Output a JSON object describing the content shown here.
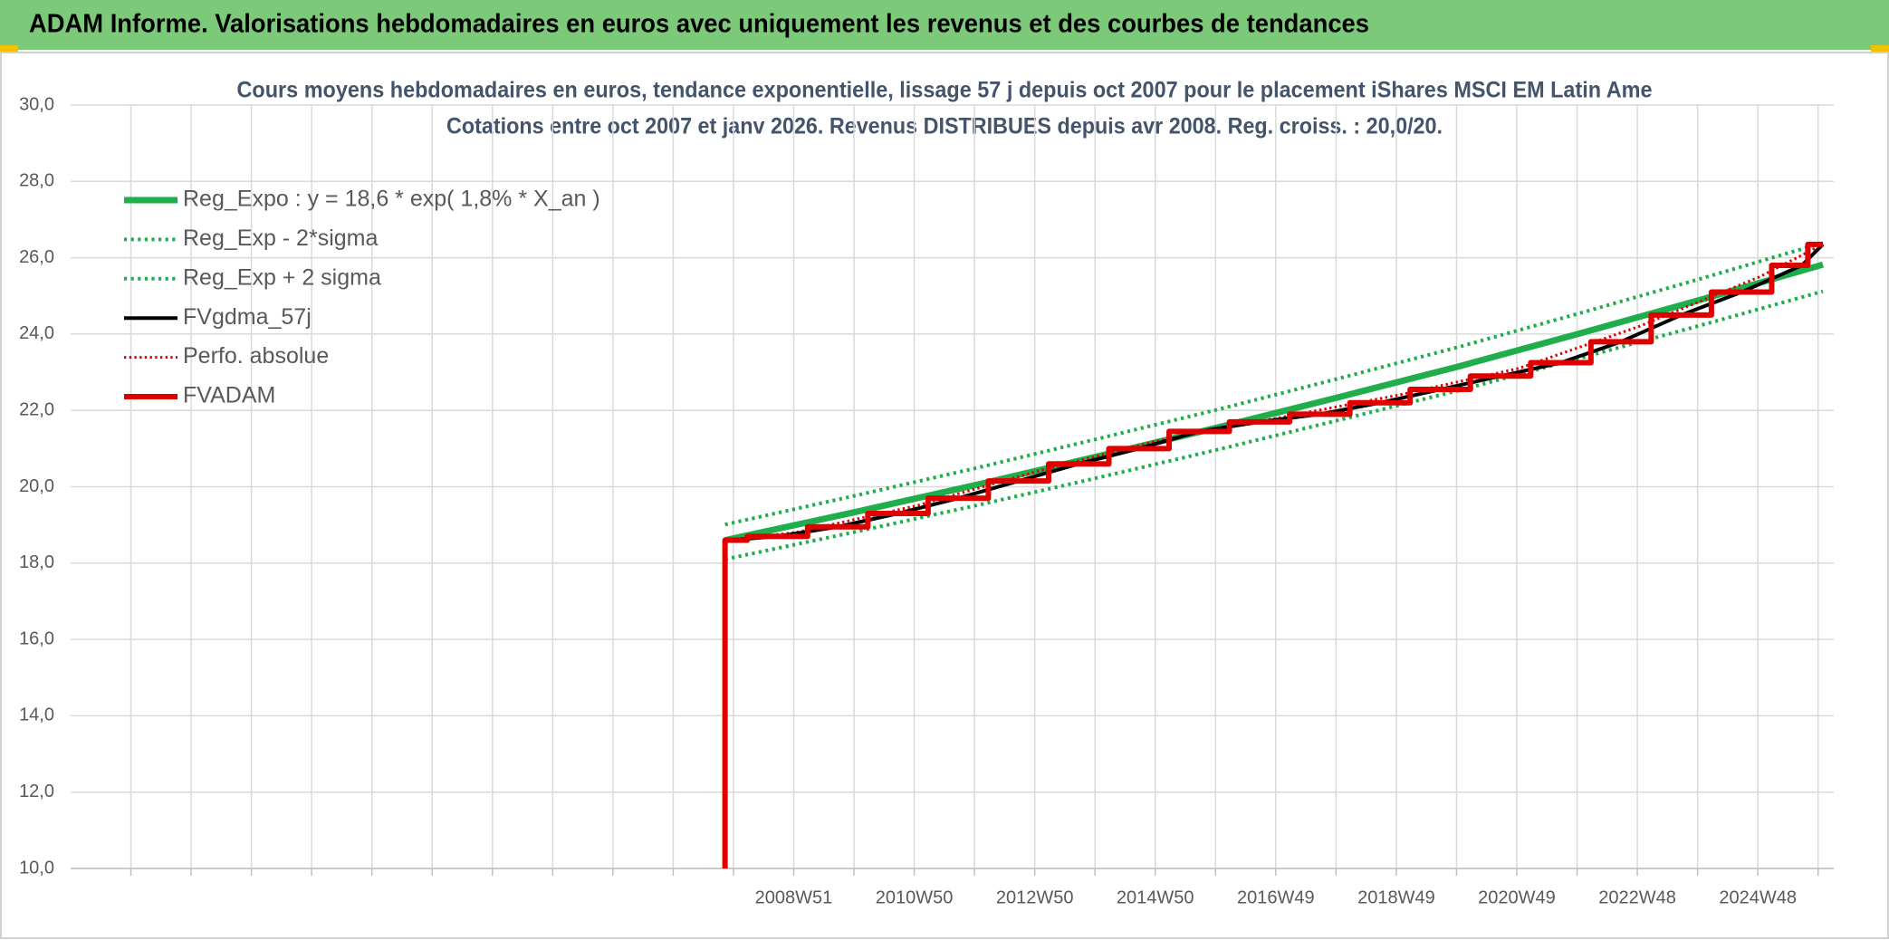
{
  "header": {
    "title": "ADAM Informe. Valorisations hebdomadaires en euros avec uniquement les revenus et des courbes de tendances"
  },
  "chart_data": {
    "type": "line",
    "title": "Cours moyens hebdomadaires en euros, tendance exponentielle, lissage 57 j depuis oct 2007 pour le placement iShares MSCI EM Latin Ame",
    "subtitle": "Cotations entre oct 2007 et janv 2026. Revenus DISTRIBUES depuis avr 2008. Reg. croiss. : 20,0/20.",
    "xlim": [
      1996.97,
      2026.23
    ],
    "xticks": [
      {
        "value": 1997.97,
        "label": null
      },
      {
        "value": 1998.97,
        "label": null
      },
      {
        "value": 1999.97,
        "label": null
      },
      {
        "value": 2000.97,
        "label": null
      },
      {
        "value": 2001.97,
        "label": null
      },
      {
        "value": 2002.97,
        "label": null
      },
      {
        "value": 2003.97,
        "label": null
      },
      {
        "value": 2004.97,
        "label": null
      },
      {
        "value": 2005.97,
        "label": null
      },
      {
        "value": 2006.97,
        "label": null
      },
      {
        "value": 2007.97,
        "label": null
      },
      {
        "value": 2008.97,
        "label": "2008W51"
      },
      {
        "value": 2009.97,
        "label": null
      },
      {
        "value": 2010.97,
        "label": "2010W50"
      },
      {
        "value": 2011.97,
        "label": null
      },
      {
        "value": 2012.97,
        "label": "2012W50"
      },
      {
        "value": 2013.97,
        "label": null
      },
      {
        "value": 2014.97,
        "label": "2014W50"
      },
      {
        "value": 2015.97,
        "label": null
      },
      {
        "value": 2016.97,
        "label": "2016W49"
      },
      {
        "value": 2017.97,
        "label": null
      },
      {
        "value": 2018.97,
        "label": "2018W49"
      },
      {
        "value": 2019.97,
        "label": null
      },
      {
        "value": 2020.97,
        "label": "2020W49"
      },
      {
        "value": 2021.97,
        "label": null
      },
      {
        "value": 2022.97,
        "label": "2022W48"
      },
      {
        "value": 2023.97,
        "label": null
      },
      {
        "value": 2024.97,
        "label": "2024W48"
      },
      {
        "value": 2025.97,
        "label": null
      }
    ],
    "ylim": [
      10,
      30
    ],
    "yticks": [
      {
        "value": 10,
        "label": "10,0"
      },
      {
        "value": 12,
        "label": "12,0"
      },
      {
        "value": 14,
        "label": "14,0"
      },
      {
        "value": 16,
        "label": "16,0"
      },
      {
        "value": 18,
        "label": "18,0"
      },
      {
        "value": 20,
        "label": "20,0"
      },
      {
        "value": 22,
        "label": "22,0"
      },
      {
        "value": 24,
        "label": "24,0"
      },
      {
        "value": 26,
        "label": "26,0"
      },
      {
        "value": 28,
        "label": "28,0"
      },
      {
        "value": 30,
        "label": "30,0"
      }
    ],
    "grid": true,
    "legend": "upper left",
    "series": [
      {
        "name": "Reg_Expo : y = 18,6 * exp( 1,8% *  X_an )",
        "color": "#1fae4b",
        "style": "solid",
        "width": 7,
        "x": [
          2007.83,
          2010,
          2012,
          2014,
          2016,
          2018,
          2020,
          2022,
          2024,
          2026.05
        ],
        "values": [
          18.6,
          19.34,
          20.05,
          20.79,
          21.55,
          22.34,
          23.15,
          24.01,
          24.89,
          25.82
        ]
      },
      {
        "name": "Reg_Exp - 2*sigma",
        "color": "#1fae4b",
        "style": "dotted",
        "width": 4,
        "x": [
          2007.83,
          2010,
          2012,
          2014,
          2016,
          2018,
          2020,
          2022,
          2024,
          2026.05
        ],
        "values": [
          18.1,
          18.82,
          19.51,
          20.23,
          20.97,
          21.74,
          22.52,
          23.36,
          24.22,
          25.12
        ]
      },
      {
        "name": "Reg_Exp + 2 sigma",
        "color": "#1fae4b",
        "style": "dotted",
        "width": 4,
        "x": [
          2007.83,
          2010,
          2012,
          2014,
          2016,
          2018,
          2020,
          2022,
          2024,
          2026.05
        ],
        "values": [
          19.01,
          19.77,
          20.49,
          21.25,
          22.02,
          22.83,
          23.66,
          24.54,
          25.44,
          26.39
        ]
      },
      {
        "name": "FVgdma_57j",
        "color": "#000000",
        "style": "solid",
        "width": 4,
        "x": [
          2007.9,
          2008.7,
          2009.7,
          2010.7,
          2011.7,
          2012.7,
          2013.7,
          2014.7,
          2015.7,
          2016.7,
          2017.7,
          2018.7,
          2019.7,
          2020.7,
          2021.7,
          2022.7,
          2023.7,
          2024.7,
          2025.7,
          2026.05
        ],
        "values": [
          18.6,
          18.7,
          18.95,
          19.3,
          19.7,
          20.15,
          20.6,
          21.0,
          21.45,
          21.7,
          21.9,
          22.2,
          22.55,
          22.9,
          23.25,
          23.8,
          24.5,
          25.1,
          25.8,
          26.35
        ]
      },
      {
        "name": "Perfo. absolue",
        "color": "#e00000",
        "style": "dotted",
        "width": 3,
        "x": [
          2007.83,
          2009,
          2011,
          2013,
          2015,
          2017,
          2019,
          2021,
          2023,
          2025,
          2026.05
        ],
        "values": [
          18.6,
          18.8,
          19.5,
          20.4,
          21.2,
          21.8,
          22.4,
          23.1,
          24.2,
          25.5,
          26.35
        ]
      },
      {
        "name": "FVADAM",
        "color": "#e00000",
        "style": "solid",
        "width": 6,
        "x": [
          2007.83,
          2007.83,
          2008.2,
          2008.2,
          2009.2,
          2009.2,
          2010.2,
          2010.2,
          2011.2,
          2011.2,
          2012.2,
          2012.2,
          2013.2,
          2013.2,
          2014.2,
          2014.2,
          2015.2,
          2015.2,
          2016.2,
          2016.2,
          2017.2,
          2017.2,
          2018.2,
          2018.2,
          2019.2,
          2019.2,
          2020.2,
          2020.2,
          2021.2,
          2021.2,
          2022.2,
          2022.2,
          2023.2,
          2023.2,
          2024.2,
          2024.2,
          2025.2,
          2025.2,
          2025.8,
          2025.8,
          2026.05
        ],
        "values": [
          10,
          18.6,
          18.6,
          18.7,
          18.7,
          18.95,
          18.95,
          19.3,
          19.3,
          19.7,
          19.7,
          20.15,
          20.15,
          20.6,
          20.6,
          21.0,
          21.0,
          21.45,
          21.45,
          21.7,
          21.7,
          21.9,
          21.9,
          22.2,
          22.2,
          22.55,
          22.55,
          22.9,
          22.9,
          23.25,
          23.25,
          23.8,
          23.8,
          24.5,
          24.5,
          25.1,
          25.1,
          25.8,
          25.8,
          26.35,
          26.35
        ]
      }
    ]
  }
}
